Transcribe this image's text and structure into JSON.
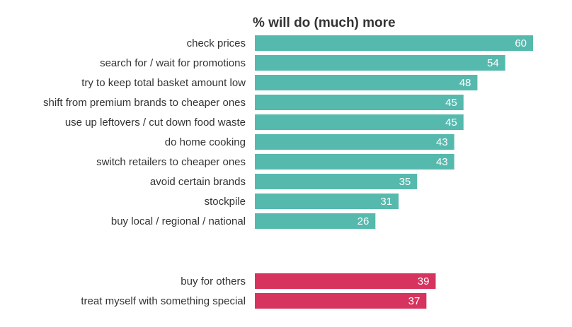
{
  "chart_data": {
    "type": "bar",
    "orientation": "horizontal",
    "title": "% will do (much) more",
    "xlabel": "",
    "ylabel": "",
    "xlim": [
      0,
      70
    ],
    "grid": false,
    "legend": "none",
    "groups": [
      {
        "color": "#56b9ad",
        "categories": [
          "check prices",
          "search for / wait for promotions",
          "try to keep total basket amount low",
          "shift from premium brands to cheaper ones",
          "use up leftovers / cut down food waste",
          "do home cooking",
          "switch retailers to cheaper ones",
          "avoid certain brands ",
          "stockpile",
          "buy local / regional / national"
        ],
        "values": [
          60,
          54,
          48,
          45,
          45,
          43,
          43,
          35,
          31,
          26
        ]
      },
      {
        "color": "#d6335e",
        "categories": [
          "buy for others",
          "treat myself with something special"
        ],
        "values": [
          39,
          37
        ]
      }
    ]
  }
}
